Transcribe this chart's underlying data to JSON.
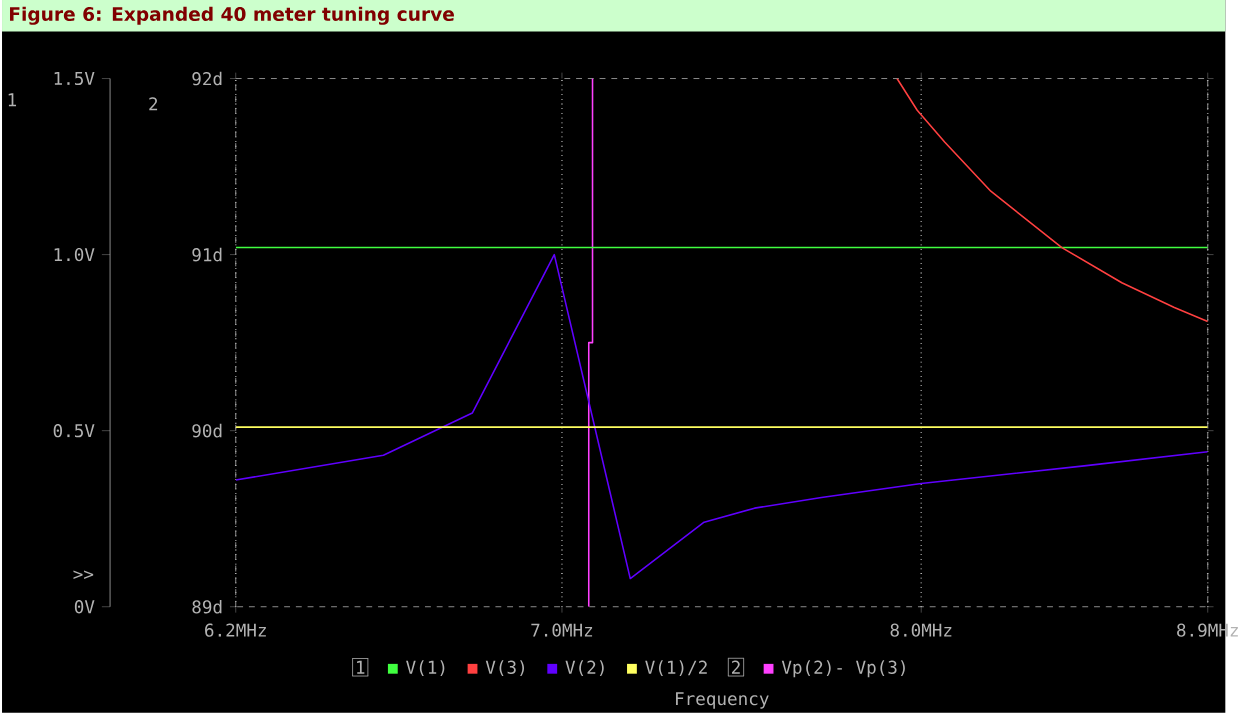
{
  "chart_data": {
    "type": "line",
    "title": "Figure 6: Expanded 40 meter tuning curve",
    "xlabel": "Frequency",
    "ylabel": "1",
    "y2label": "2",
    "annotations": [
      ">>",
      "1",
      "2"
    ],
    "series": [
      {
        "name": "V(1)",
        "color": "#40ff40",
        "x": [
          6.2,
          8.9
        ],
        "values": [
          1.02,
          1.02
        ]
      },
      {
        "name": "V(3)",
        "color": "#ff4040",
        "x": [
          7.93,
          7.99,
          8.07,
          8.21,
          8.43,
          8.62,
          8.79,
          8.9
        ],
        "values": [
          1.5,
          1.41,
          1.32,
          1.18,
          1.02,
          0.92,
          0.85,
          0.81
        ]
      },
      {
        "name": "V(2)",
        "color": "#6000ff",
        "x": [
          6.2,
          6.55,
          6.77,
          6.98,
          7.18,
          7.38,
          7.52,
          7.71,
          8.0,
          8.5,
          8.9
        ],
        "values": [
          0.36,
          0.43,
          0.55,
          1.0,
          0.08,
          0.24,
          0.28,
          0.31,
          0.35,
          0.4,
          0.44
        ]
      },
      {
        "name": "V(1)/2",
        "color": "#ffff60",
        "x": [
          6.2,
          8.9
        ],
        "values": [
          0.51,
          0.51
        ]
      },
      {
        "name": "Vp(2)- Vp(3)",
        "color": "#ff40ff",
        "axis": "y2",
        "x": [
          7.07,
          7.07,
          7.08,
          7.08
        ],
        "values": [
          89,
          90.5,
          90.5,
          92
        ]
      }
    ],
    "xlim": [
      6.2,
      8.9
    ],
    "ylim": [
      0,
      1.5
    ],
    "y2lim": [
      89,
      92
    ],
    "xticks": [
      {
        "value": 6.2,
        "label": "6.2MHz"
      },
      {
        "value": 7.0,
        "label": "7.0MHz"
      },
      {
        "value": 8.0,
        "label": "8.0MHz"
      },
      {
        "value": 8.9,
        "label": "8.9MHz"
      }
    ],
    "yticks": [
      {
        "value": 0,
        "label": "0V"
      },
      {
        "value": 0.5,
        "label": "0.5V"
      },
      {
        "value": 1.0,
        "label": "1.0V"
      },
      {
        "value": 1.5,
        "label": "1.5V"
      }
    ],
    "y2ticks": [
      {
        "value": 89,
        "label": "89d"
      },
      {
        "value": 90,
        "label": "90d"
      },
      {
        "value": 91,
        "label": "91d"
      },
      {
        "value": 92,
        "label": "92d"
      }
    ],
    "log": "x",
    "grid": "x",
    "legend": "bottom"
  }
}
